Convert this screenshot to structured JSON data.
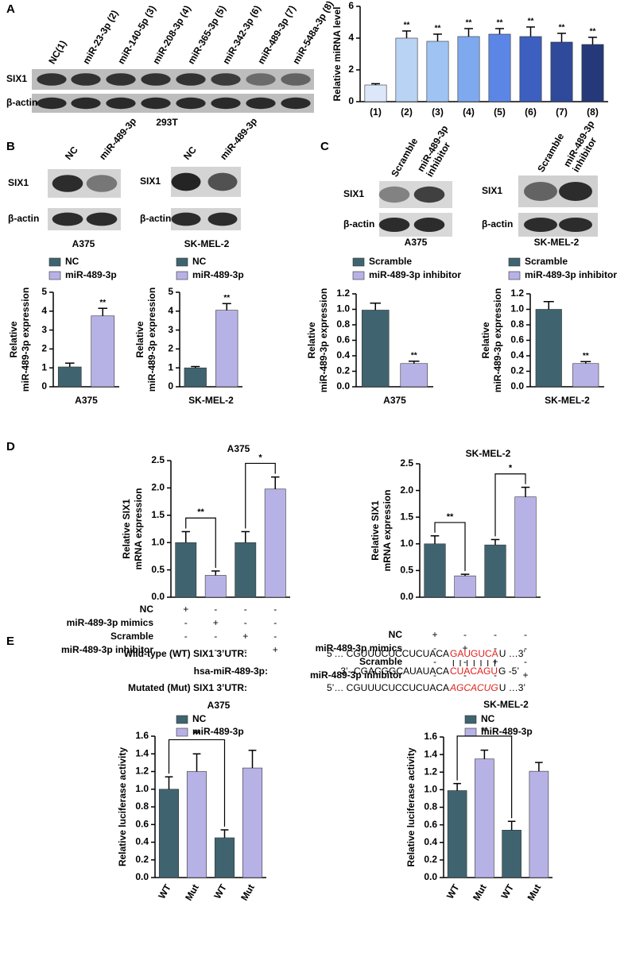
{
  "panel_labels": [
    "A",
    "B",
    "C",
    "D",
    "E"
  ],
  "blots": [
    {
      "lanes": [
        "NC(1)",
        "miR-23-3p (2)",
        "miR-140-5p (3)",
        "miR-208-3p (4)",
        "miR-365-3p (5)",
        "miR-342-3p (6)",
        "miR-489-3p (7)",
        "miR-548a-3p (8)"
      ],
      "rows": [
        "SIX1",
        "β-actin"
      ],
      "caption": "293T"
    },
    {
      "lanes": [
        "NC",
        "miR-489-3p"
      ],
      "rows": [
        "SIX1",
        "β-actin"
      ],
      "caption": "A375"
    },
    {
      "lanes": [
        "NC",
        "miR-489-3p"
      ],
      "rows": [
        "SIX1",
        "β-actin"
      ],
      "caption": "SK-MEL-2"
    },
    {
      "lanes": [
        "Scramble",
        [
          "miR-489-3p",
          "inhibitor"
        ]
      ],
      "rows": [
        "SIX1",
        "β-actin"
      ],
      "caption": "A375"
    },
    {
      "lanes": [
        "Scramble",
        [
          "miR-489-3p",
          "inhibitor"
        ]
      ],
      "rows": [
        "SIX1",
        "β-actin"
      ],
      "caption": "SK-MEL-2"
    }
  ],
  "sequence_panel": {
    "rows": [
      {
        "label": "Wild-type (WT) SIX1  3’UTR:",
        "parts": [
          "5’…  CGUUUCUCCUCUACA",
          "GAUGUCA",
          "U  …3’"
        ]
      },
      {
        "label": "hsa-miR-489-3p:",
        "parts": [
          "3’-  CGACGGCAUAUACA",
          "CUACAGU",
          "G  -5’"
        ]
      },
      {
        "label": "Mutated (Mut) SIX1 3’UTR:",
        "parts": [
          "5’…  CGUUUCUCCUCUACA",
          "AGCACUG",
          "U  …3’"
        ]
      }
    ]
  },
  "chart_data": [
    {
      "type": "bar",
      "ylabel": "Relative miRNA level",
      "categories": [
        "(1)",
        "(2)",
        "(3)",
        "(4)",
        "(5)",
        "(6)",
        "(7)",
        "(8)"
      ],
      "values": [
        1.05,
        4.0,
        3.8,
        4.1,
        4.25,
        4.1,
        3.75,
        3.6
      ],
      "errors": [
        0.08,
        0.45,
        0.45,
        0.5,
        0.35,
        0.6,
        0.55,
        0.45
      ],
      "colors": [
        "#dce7fa",
        "#b9d3f5",
        "#9fc3f3",
        "#7fa9ef",
        "#5c86e6",
        "#3d5fc0",
        "#2f4a9a",
        "#25397a"
      ],
      "significance": [
        null,
        "**",
        "**",
        "**",
        "**",
        "**",
        "**",
        "**"
      ],
      "ylim": [
        0,
        6
      ],
      "yticks": [
        0,
        2,
        4,
        6
      ]
    },
    {
      "type": "bar",
      "ylabel": [
        "Relative",
        "miR-489-3p expression"
      ],
      "categories": [
        "A375"
      ],
      "series": [
        {
          "name": "NC",
          "color": "#3f6470",
          "values": [
            1.05
          ],
          "errors": [
            0.2
          ]
        },
        {
          "name": "miR-489-3p",
          "color": "#b7b2e6",
          "values": [
            3.75
          ],
          "errors": [
            0.4
          ],
          "significance": [
            "**"
          ]
        }
      ],
      "ylim": [
        0,
        5
      ],
      "yticks": [
        0,
        1,
        2,
        3,
        4,
        5
      ]
    },
    {
      "type": "bar",
      "ylabel": [
        "Relative",
        "miR-489-3p expression"
      ],
      "categories": [
        "SK-MEL-2"
      ],
      "series": [
        {
          "name": "NC",
          "color": "#3f6470",
          "values": [
            1.0
          ],
          "errors": [
            0.07
          ]
        },
        {
          "name": "miR-489-3p",
          "color": "#b7b2e6",
          "values": [
            4.05
          ],
          "errors": [
            0.35
          ],
          "significance": [
            "**"
          ]
        }
      ],
      "ylim": [
        0,
        5
      ],
      "yticks": [
        0,
        1,
        2,
        3,
        4,
        5
      ]
    },
    {
      "type": "bar",
      "ylabel": [
        "Relative",
        "miR-489-3p expression"
      ],
      "categories": [
        "A375"
      ],
      "series": [
        {
          "name": "Scramble",
          "color": "#3f6470",
          "values": [
            0.99
          ],
          "errors": [
            0.09
          ]
        },
        {
          "name": "miR-489-3p inhibitor",
          "color": "#b7b2e6",
          "values": [
            0.3
          ],
          "errors": [
            0.03
          ],
          "significance": [
            "**"
          ]
        }
      ],
      "ylim": [
        0,
        1.2
      ],
      "yticks": [
        {
          "value": 0,
          "label": "0.0"
        },
        0.2,
        0.4,
        0.6,
        0.8,
        {
          "value": 1,
          "label": "1.0"
        },
        1.2
      ]
    },
    {
      "type": "bar",
      "ylabel": [
        "Relative",
        "miR-489-3p expression"
      ],
      "categories": [
        "SK-MEL-2"
      ],
      "series": [
        {
          "name": "Scramble",
          "color": "#3f6470",
          "values": [
            1.0
          ],
          "errors": [
            0.1
          ]
        },
        {
          "name": "miR-489-3p inhibitor",
          "color": "#b7b2e6",
          "values": [
            0.3
          ],
          "errors": [
            0.025
          ],
          "significance": [
            "**"
          ]
        }
      ],
      "ylim": [
        0,
        1.2
      ],
      "yticks": [
        {
          "value": 0,
          "label": "0.0"
        },
        0.2,
        0.4,
        0.6,
        0.8,
        {
          "value": 1,
          "label": "1.0"
        },
        1.2
      ]
    },
    {
      "type": "bar",
      "title": "A375",
      "ylabel": [
        "Relative SIX1",
        "mRNA expression"
      ],
      "values": [
        1.0,
        0.4,
        1.0,
        1.98
      ],
      "errors": [
        0.2,
        0.08,
        0.2,
        0.22
      ],
      "colors": [
        "#3f6470",
        "#b7b2e6",
        "#3f6470",
        "#b7b2e6"
      ],
      "ylim": [
        0,
        2.5
      ],
      "yticks": [
        {
          "value": 0,
          "label": "0.0"
        },
        0.5,
        {
          "value": 1,
          "label": "1.0"
        },
        1.5,
        {
          "value": 2,
          "label": "2.0"
        },
        2.5
      ],
      "brackets": [
        {
          "bars": [
            0,
            1
          ],
          "label": "**"
        },
        {
          "bars": [
            2,
            3
          ],
          "label": "*"
        }
      ],
      "conditions": [
        {
          "label": "NC",
          "marks": [
            "+",
            "-",
            "-",
            "-"
          ]
        },
        {
          "label": "miR-489-3p  mimics",
          "marks": [
            "-",
            "+",
            "-",
            "-"
          ]
        },
        {
          "label": "Scramble",
          "marks": [
            "-",
            "-",
            "+",
            "-"
          ]
        },
        {
          "label": "miR-489-3p inhibitor",
          "marks": [
            "-",
            "-",
            "-",
            "+"
          ]
        }
      ]
    },
    {
      "type": "bar",
      "title": "SK-MEL-2",
      "ylabel": [
        "Relative SIX1",
        "mRNA expression"
      ],
      "values": [
        1.0,
        0.4,
        0.98,
        1.88
      ],
      "errors": [
        0.15,
        0.03,
        0.1,
        0.18
      ],
      "colors": [
        "#3f6470",
        "#b7b2e6",
        "#3f6470",
        "#b7b2e6"
      ],
      "ylim": [
        0,
        2.5
      ],
      "yticks": [
        {
          "value": 0,
          "label": "0.0"
        },
        0.5,
        {
          "value": 1,
          "label": "1.0"
        },
        1.5,
        {
          "value": 2,
          "label": "2.0"
        },
        2.5
      ],
      "brackets": [
        {
          "bars": [
            0,
            1
          ],
          "label": "**"
        },
        {
          "bars": [
            2,
            3
          ],
          "label": "*"
        }
      ],
      "conditions": [
        {
          "label": "NC",
          "marks": [
            "+",
            "-",
            "-",
            "-"
          ]
        },
        {
          "label": "miR-489-3p mimics",
          "marks": [
            "-",
            "+",
            "-",
            "-"
          ]
        },
        {
          "label": "Scramble",
          "marks": [
            "-",
            "-",
            "+",
            "-"
          ]
        },
        {
          "label": "miR-489-3p inhibitor",
          "marks": [
            "-",
            "-",
            "-",
            "+"
          ]
        }
      ]
    },
    {
      "type": "bar",
      "title": "A375",
      "ylabel": "Relative luciferase activity",
      "categories": [
        "WT",
        "Mut",
        "WT",
        "Mut"
      ],
      "values": [
        1.0,
        1.2,
        0.45,
        1.24
      ],
      "errors": [
        0.14,
        0.2,
        0.09,
        0.2
      ],
      "colors": [
        "#3f6470",
        "#b7b2e6",
        "#3f6470",
        "#b7b2e6"
      ],
      "legend": [
        {
          "name": "NC",
          "color": "#3f6470"
        },
        {
          "name": "miR-489-3p",
          "color": "#b7b2e6"
        }
      ],
      "ylim": [
        0,
        1.6
      ],
      "yticks": [
        {
          "value": 0,
          "label": "0.0"
        },
        0.2,
        0.4,
        0.6,
        0.8,
        {
          "value": 1,
          "label": "1.0"
        },
        1.2,
        1.4,
        1.6
      ],
      "brackets": [
        {
          "bars": [
            0,
            2
          ],
          "label": "**"
        }
      ]
    },
    {
      "type": "bar",
      "title": "SK-MEL-2",
      "ylabel": "Relative luciferase activity",
      "categories": [
        "WT",
        "Mut",
        "WT",
        "Mut"
      ],
      "values": [
        0.99,
        1.35,
        0.54,
        1.21
      ],
      "errors": [
        0.08,
        0.1,
        0.1,
        0.1
      ],
      "colors": [
        "#3f6470",
        "#b7b2e6",
        "#3f6470",
        "#b7b2e6"
      ],
      "legend": [
        {
          "name": "NC",
          "color": "#3f6470"
        },
        {
          "name": "miR-489-3p",
          "color": "#b7b2e6"
        }
      ],
      "ylim": [
        0,
        1.6
      ],
      "yticks": [
        {
          "value": 0,
          "label": "0.0"
        },
        0.2,
        0.4,
        0.6,
        0.8,
        {
          "value": 1,
          "label": "1.0"
        },
        1.2,
        1.4,
        1.6
      ],
      "brackets": [
        {
          "bars": [
            0,
            2
          ],
          "label": "**"
        }
      ]
    }
  ]
}
